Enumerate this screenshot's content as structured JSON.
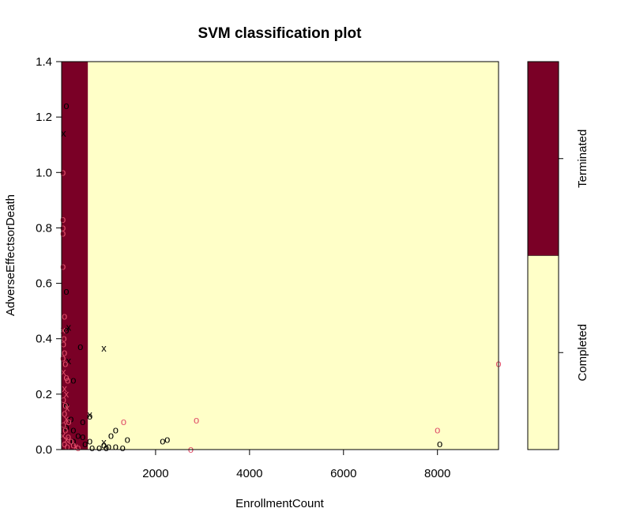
{
  "chart_data": {
    "type": "scatter",
    "title": "SVM classification plot",
    "xlabel": "EnrollmentCount",
    "ylabel": "AdverseEffectsorDeath",
    "xlim": [
      0,
      9300
    ],
    "ylim": [
      0,
      1.4
    ],
    "xticks": [
      "2000",
      "4000",
      "6000",
      "8000"
    ],
    "yticks": [
      "0.0",
      "0.2",
      "0.4",
      "0.6",
      "0.8",
      "1.0",
      "1.2",
      "1.4"
    ],
    "grid": false,
    "colors": {
      "terminated_region": "#7a0026",
      "completed_region": "#ffffc8",
      "completed_points": "#000000",
      "terminated_points": "#e0506a"
    },
    "regions": [
      {
        "class": "Terminated",
        "x_from": 0,
        "x_to": 560
      },
      {
        "class": "Completed",
        "x_from": 560,
        "x_to": 9300
      }
    ],
    "legend": {
      "placement": "right",
      "classes": [
        "Terminated",
        "Completed"
      ]
    },
    "series": [
      {
        "name": "Completed",
        "points": [
          {
            "x": 100,
            "y": 1.24,
            "m": "o"
          },
          {
            "x": 40,
            "y": 1.14,
            "m": "x"
          },
          {
            "x": 100,
            "y": 0.57,
            "m": "o"
          },
          {
            "x": 150,
            "y": 0.44,
            "m": "x"
          },
          {
            "x": 100,
            "y": 0.43,
            "m": "o"
          },
          {
            "x": 400,
            "y": 0.37,
            "m": "o"
          },
          {
            "x": 900,
            "y": 0.365,
            "m": "x"
          },
          {
            "x": 150,
            "y": 0.32,
            "m": "x"
          },
          {
            "x": 250,
            "y": 0.25,
            "m": "o"
          },
          {
            "x": 100,
            "y": 0.16,
            "m": "o"
          },
          {
            "x": 600,
            "y": 0.125,
            "m": "x"
          },
          {
            "x": 600,
            "y": 0.12,
            "m": "o"
          },
          {
            "x": 200,
            "y": 0.11,
            "m": "o"
          },
          {
            "x": 450,
            "y": 0.1,
            "m": "o"
          },
          {
            "x": 100,
            "y": 0.08,
            "m": "o"
          },
          {
            "x": 250,
            "y": 0.07,
            "m": "o"
          },
          {
            "x": 1150,
            "y": 0.07,
            "m": "o"
          },
          {
            "x": 350,
            "y": 0.05,
            "m": "o"
          },
          {
            "x": 1050,
            "y": 0.05,
            "m": "o"
          },
          {
            "x": 450,
            "y": 0.045,
            "m": "o"
          },
          {
            "x": 1400,
            "y": 0.035,
            "m": "o"
          },
          {
            "x": 2250,
            "y": 0.035,
            "m": "o"
          },
          {
            "x": 250,
            "y": 0.03,
            "m": "o"
          },
          {
            "x": 600,
            "y": 0.03,
            "m": "o"
          },
          {
            "x": 2150,
            "y": 0.03,
            "m": "o"
          },
          {
            "x": 900,
            "y": 0.025,
            "m": "x"
          },
          {
            "x": 500,
            "y": 0.02,
            "m": "o"
          },
          {
            "x": 8050,
            "y": 0.02,
            "m": "o"
          },
          {
            "x": 900,
            "y": 0.015,
            "m": "o"
          },
          {
            "x": 1000,
            "y": 0.01,
            "m": "o"
          },
          {
            "x": 1150,
            "y": 0.01,
            "m": "o"
          },
          {
            "x": 650,
            "y": 0.005,
            "m": "o"
          },
          {
            "x": 1300,
            "y": 0.005,
            "m": "o"
          },
          {
            "x": 800,
            "y": 0.005,
            "m": "o"
          },
          {
            "x": 950,
            "y": 0.005,
            "m": "o"
          }
        ]
      },
      {
        "name": "Terminated",
        "points": [
          {
            "x": 30,
            "y": 1.0,
            "m": "o"
          },
          {
            "x": 30,
            "y": 0.83,
            "m": "o"
          },
          {
            "x": 30,
            "y": 0.8,
            "m": "o"
          },
          {
            "x": 30,
            "y": 0.78,
            "m": "o"
          },
          {
            "x": 30,
            "y": 0.66,
            "m": "o"
          },
          {
            "x": 60,
            "y": 0.48,
            "m": "o"
          },
          {
            "x": 30,
            "y": 0.43,
            "m": "x"
          },
          {
            "x": 50,
            "y": 0.4,
            "m": "o"
          },
          {
            "x": 40,
            "y": 0.38,
            "m": "o"
          },
          {
            "x": 60,
            "y": 0.35,
            "m": "o"
          },
          {
            "x": 30,
            "y": 0.33,
            "m": "o"
          },
          {
            "x": 80,
            "y": 0.31,
            "m": "o"
          },
          {
            "x": 40,
            "y": 0.28,
            "m": "x"
          },
          {
            "x": 100,
            "y": 0.26,
            "m": "o"
          },
          {
            "x": 130,
            "y": 0.25,
            "m": "o"
          },
          {
            "x": 60,
            "y": 0.22,
            "m": "x"
          },
          {
            "x": 100,
            "y": 0.2,
            "m": "x"
          },
          {
            "x": 40,
            "y": 0.18,
            "m": "o"
          },
          {
            "x": 80,
            "y": 0.16,
            "m": "o"
          },
          {
            "x": 120,
            "y": 0.15,
            "m": "x"
          },
          {
            "x": 60,
            "y": 0.13,
            "m": "o"
          },
          {
            "x": 100,
            "y": 0.11,
            "m": "x"
          },
          {
            "x": 150,
            "y": 0.1,
            "m": "o"
          },
          {
            "x": 40,
            "y": 0.09,
            "m": "o"
          },
          {
            "x": 80,
            "y": 0.07,
            "m": "o"
          },
          {
            "x": 30,
            "y": 0.05,
            "m": "x"
          },
          {
            "x": 140,
            "y": 0.045,
            "m": "o"
          },
          {
            "x": 100,
            "y": 0.035,
            "m": "x"
          },
          {
            "x": 200,
            "y": 0.03,
            "m": "o"
          },
          {
            "x": 60,
            "y": 0.02,
            "m": "o"
          },
          {
            "x": 250,
            "y": 0.015,
            "m": "o"
          },
          {
            "x": 120,
            "y": 0.01,
            "m": "o"
          },
          {
            "x": 300,
            "y": 0.01,
            "m": "x"
          },
          {
            "x": 350,
            "y": 0.005,
            "m": "o"
          },
          {
            "x": 1320,
            "y": 0.1,
            "m": "o"
          },
          {
            "x": 2870,
            "y": 0.105,
            "m": "o"
          },
          {
            "x": 8000,
            "y": 0.07,
            "m": "o"
          },
          {
            "x": 9300,
            "y": 0.31,
            "m": "o"
          },
          {
            "x": 2750,
            "y": 0.0,
            "m": "o"
          }
        ]
      }
    ]
  }
}
